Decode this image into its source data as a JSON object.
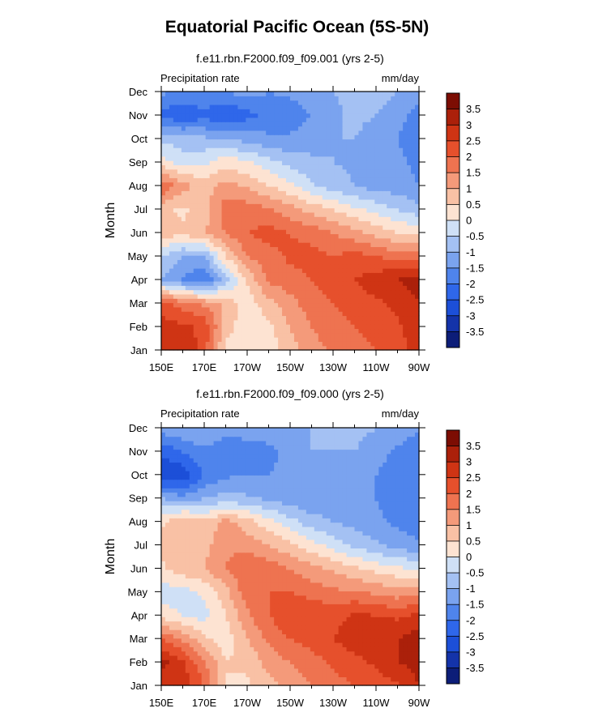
{
  "title": "Equatorial Pacific Ocean (5S-5N)",
  "colormap": {
    "levels": [
      "-3.5",
      "-3",
      "-2.5",
      "-2",
      "-1.5",
      "-1",
      "-0.5",
      "0",
      "0.5",
      "1",
      "1.5",
      "2",
      "2.5",
      "3",
      "3.5"
    ],
    "colors": [
      "#0c1d78",
      "#1433a9",
      "#1c4fd8",
      "#2f67ea",
      "#4f84ec",
      "#7aa3ef",
      "#a4c1f3",
      "#cfe0f6",
      "#fde3d2",
      "#f9c1a5",
      "#f49a7a",
      "#ee7350",
      "#e6502c",
      "#cf3414",
      "#ab200a",
      "#7c0d03"
    ]
  },
  "chart_data": [
    {
      "type": "heatmap",
      "title": "f.e11.rbn.F2000.f09_f09.001 (yrs 2-5)",
      "left_label": "Precipitation rate",
      "right_label": "mm/day",
      "xlabel": "",
      "ylabel": "Month",
      "x_ticks": [
        "150E",
        "170E",
        "170W",
        "150W",
        "130W",
        "110W",
        "90W"
      ],
      "y_ticks": [
        "Jan",
        "Feb",
        "Mar",
        "Apr",
        "May",
        "Jun",
        "Jul",
        "Aug",
        "Sep",
        "Oct",
        "Nov",
        "Dec"
      ],
      "x_range_deg": [
        150,
        270
      ],
      "colorbar_labels": [
        "3.5",
        "3",
        "2.5",
        "2",
        "1.5",
        "1",
        "0.5",
        "0",
        "-0.5",
        "-1",
        "-1.5",
        "-2",
        "-2.5",
        "-3",
        "-3.5"
      ],
      "z_grid": [
        [
          2.6,
          3.0,
          2.2,
          0.3,
          0.0,
          0.2,
          0.8,
          1.3,
          1.6,
          1.8,
          2.0,
          2.2,
          2.8
        ],
        [
          2.8,
          2.6,
          2.4,
          0.8,
          0.1,
          0.4,
          1.0,
          1.5,
          1.8,
          2.0,
          2.2,
          2.4,
          3.0
        ],
        [
          2.2,
          1.8,
          1.4,
          0.9,
          0.2,
          0.8,
          1.3,
          1.8,
          2.0,
          2.2,
          2.4,
          2.6,
          3.0
        ],
        [
          -1.0,
          -1.6,
          -2.0,
          -0.8,
          0.6,
          1.6,
          1.8,
          2.0,
          2.2,
          2.5,
          2.8,
          3.0,
          3.2
        ],
        [
          -0.5,
          -1.0,
          -1.0,
          0.5,
          1.5,
          1.8,
          2.1,
          2.2,
          2.0,
          2.2,
          2.0,
          1.8,
          1.8
        ],
        [
          0.8,
          0.6,
          1.0,
          1.5,
          2.0,
          2.2,
          2.0,
          1.8,
          1.5,
          1.2,
          0.8,
          0.5,
          0.3
        ],
        [
          0.6,
          0.4,
          0.7,
          1.8,
          1.8,
          1.6,
          1.2,
          0.8,
          0.5,
          0.1,
          -0.2,
          -0.5,
          -0.8
        ],
        [
          2.0,
          1.2,
          0.8,
          1.2,
          0.9,
          0.5,
          0.1,
          -0.4,
          -0.8,
          -1.0,
          -1.2,
          -1.3,
          -1.5
        ],
        [
          0.2,
          -0.2,
          -0.1,
          0.3,
          0.1,
          -0.3,
          -0.7,
          -0.9,
          -1.0,
          -1.1,
          -1.2,
          -1.4,
          -1.6
        ],
        [
          -0.6,
          -0.8,
          -0.9,
          -1.0,
          -1.2,
          -1.4,
          -1.4,
          -1.2,
          -1.0,
          -1.0,
          -1.2,
          -1.5,
          -1.8
        ],
        [
          -2.2,
          -2.4,
          -2.2,
          -2.5,
          -2.2,
          -1.8,
          -1.8,
          -1.5,
          -1.1,
          -0.9,
          -1.0,
          -1.3,
          -1.8
        ],
        [
          -1.4,
          -1.6,
          -1.5,
          -1.5,
          -1.3,
          -1.5,
          -1.4,
          -1.2,
          -1.0,
          -0.9,
          -0.8,
          -1.0,
          -1.2
        ]
      ]
    },
    {
      "type": "heatmap",
      "title": "f.e11.rbn.F2000.f09_f09.000 (yrs 2-5)",
      "left_label": "Precipitation rate",
      "right_label": "mm/day",
      "xlabel": "",
      "ylabel": "Month",
      "x_ticks": [
        "150E",
        "170E",
        "170W",
        "150W",
        "130W",
        "110W",
        "90W"
      ],
      "y_ticks": [
        "Jan",
        "Feb",
        "Mar",
        "Apr",
        "May",
        "Jun",
        "Jul",
        "Aug",
        "Sep",
        "Oct",
        "Nov",
        "Dec"
      ],
      "x_range_deg": [
        150,
        270
      ],
      "colorbar_labels": [
        "3.5",
        "3",
        "2.5",
        "2",
        "1.5",
        "1",
        "0.5",
        "0",
        "-0.5",
        "-1",
        "-1.5",
        "-2",
        "-2.5",
        "-3",
        "-3.5"
      ],
      "z_grid": [
        [
          2.5,
          2.8,
          2.0,
          0.5,
          0.4,
          0.8,
          1.2,
          1.5,
          1.8,
          2.0,
          2.2,
          2.4,
          3.0
        ],
        [
          3.2,
          2.6,
          1.6,
          0.5,
          0.6,
          1.2,
          1.5,
          1.8,
          2.1,
          2.3,
          2.6,
          3.0,
          3.2
        ],
        [
          2.0,
          1.4,
          0.6,
          0.2,
          1.0,
          1.6,
          2.0,
          2.2,
          2.5,
          2.8,
          3.0,
          3.0,
          3.3
        ],
        [
          0.3,
          0.0,
          -0.2,
          0.5,
          1.4,
          2.0,
          2.4,
          2.5,
          2.3,
          2.6,
          2.5,
          2.4,
          2.6
        ],
        [
          -0.3,
          -0.2,
          0.1,
          0.8,
          1.8,
          2.0,
          2.0,
          1.8,
          1.6,
          1.6,
          1.4,
          1.2,
          1.4
        ],
        [
          0.4,
          0.8,
          1.0,
          1.5,
          2.0,
          1.8,
          1.5,
          1.2,
          0.9,
          0.6,
          0.3,
          0.1,
          -0.1
        ],
        [
          0.6,
          1.0,
          0.8,
          1.4,
          1.3,
          1.0,
          0.6,
          0.2,
          -0.2,
          -0.6,
          -0.9,
          -1.2,
          -1.4
        ],
        [
          0.4,
          1.0,
          0.6,
          1.2,
          0.7,
          0.2,
          -0.3,
          -0.8,
          -1.0,
          -1.2,
          -1.4,
          -1.6,
          -1.8
        ],
        [
          -1.0,
          -1.3,
          -1.0,
          -0.8,
          -0.9,
          -1.1,
          -1.3,
          -1.4,
          -1.3,
          -1.3,
          -1.5,
          -1.7,
          -1.9
        ],
        [
          -3.0,
          -2.9,
          -2.0,
          -1.6,
          -1.5,
          -1.5,
          -1.4,
          -1.2,
          -1.0,
          -1.2,
          -1.5,
          -1.8,
          -2.0
        ],
        [
          -2.4,
          -2.0,
          -1.6,
          -2.0,
          -1.8,
          -1.6,
          -1.4,
          -1.0,
          -1.0,
          -1.0,
          -1.3,
          -1.6,
          -1.9
        ],
        [
          -1.2,
          -1.0,
          -1.0,
          -1.2,
          -1.2,
          -1.3,
          -1.2,
          -1.0,
          -0.8,
          -0.8,
          -1.0,
          -1.2,
          -1.4
        ]
      ]
    }
  ]
}
